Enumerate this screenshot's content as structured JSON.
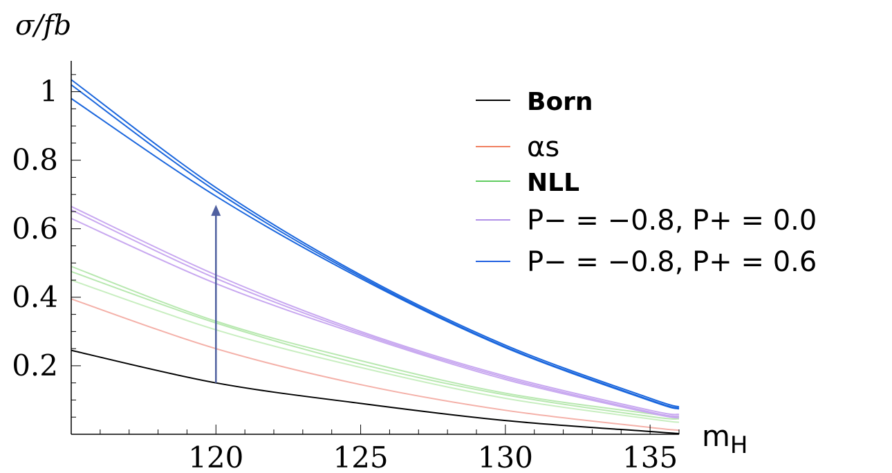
{
  "chart_data": {
    "type": "line",
    "xlabel": "m",
    "xlabel_sub": "H",
    "ylabel": "σ/fb",
    "xlim": [
      115,
      136
    ],
    "ylim": [
      0,
      1.09
    ],
    "xticks": [
      120,
      125,
      130,
      135
    ],
    "xtick_labels": [
      "120",
      "125",
      "130",
      "135"
    ],
    "yticks": [
      0.2,
      0.4,
      0.6,
      0.8,
      1
    ],
    "ytick_labels": [
      "0.2",
      "0.4",
      "0.6",
      "0.8",
      "1"
    ],
    "legend_position": "top-right",
    "legend": [
      {
        "label": "Born",
        "color": "#000000",
        "bold": true
      },
      {
        "label": "αs",
        "color": "#f08060",
        "bold": false
      },
      {
        "label": "NLL",
        "color": "#60cc60",
        "bold": true
      },
      {
        "label": "P− = −0.8, P+ = 0.0",
        "color": "#b090e8",
        "bold": false
      },
      {
        "label": "P− = −0.8, P+ = 0.6",
        "color": "#2060e0",
        "bold": false
      }
    ],
    "x": [
      115,
      120,
      125,
      130,
      135,
      136
    ],
    "series": [
      {
        "group": "Born",
        "color": "#000000",
        "values": [
          0.245,
          0.15,
          0.09,
          0.04,
          0.008,
          0.002
        ]
      },
      {
        "group": "αs",
        "color": "#f4b0a8",
        "values": [
          0.395,
          0.25,
          0.145,
          0.07,
          0.02,
          0.012
        ]
      },
      {
        "group": "NLL",
        "color": "#b8e8b0",
        "values": [
          0.475,
          0.325,
          0.205,
          0.115,
          0.052,
          0.045
        ]
      },
      {
        "group": "NLL",
        "color": "#b8e8b0",
        "values": [
          0.49,
          0.33,
          0.215,
          0.12,
          0.06,
          0.05
        ]
      },
      {
        "group": "NLL",
        "color": "#c8eec0",
        "values": [
          0.45,
          0.305,
          0.195,
          0.105,
          0.045,
          0.035
        ]
      },
      {
        "group": "P− = −0.8, P+ = 0.0",
        "color": "#c8a8f0",
        "values": [
          0.665,
          0.465,
          0.3,
          0.17,
          0.07,
          0.058
        ]
      },
      {
        "group": "P− = −0.8, P+ = 0.0",
        "color": "#c8a8f0",
        "values": [
          0.655,
          0.455,
          0.295,
          0.165,
          0.065,
          0.053
        ]
      },
      {
        "group": "P− = −0.8, P+ = 0.0",
        "color": "#c8a8f0",
        "values": [
          0.63,
          0.44,
          0.29,
          0.16,
          0.062,
          0.048
        ]
      },
      {
        "group": "P− = −0.8, P+ = 0.6",
        "color": "#1a66dd",
        "values": [
          1.035,
          0.72,
          0.465,
          0.26,
          0.105,
          0.08
        ]
      },
      {
        "group": "P− = −0.8, P+ = 0.6",
        "color": "#1a66dd",
        "values": [
          1.02,
          0.71,
          0.46,
          0.255,
          0.1,
          0.076
        ]
      },
      {
        "group": "P− = −0.8, P+ = 0.6",
        "color": "#1a66dd",
        "values": [
          0.98,
          0.695,
          0.455,
          0.253,
          0.098,
          0.074
        ]
      }
    ],
    "annotation": {
      "type": "arrow",
      "x": 120,
      "y_from": 0.15,
      "y_to": 0.67,
      "color": "#5060a0"
    }
  }
}
